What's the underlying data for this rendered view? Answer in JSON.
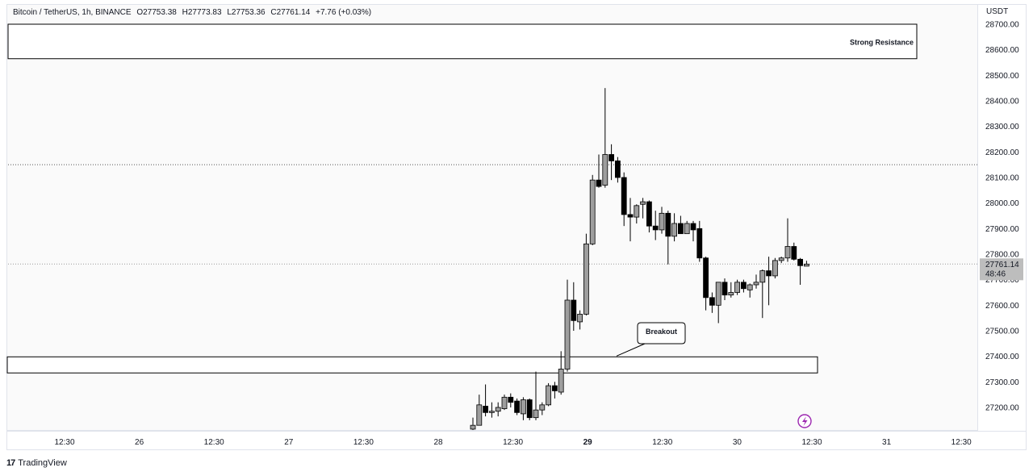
{
  "header": {
    "symbol": "Bitcoin / TetherUS, 1h, BINANCE",
    "open": "O27753.38",
    "high": "H27773.83",
    "low": "L27753.36",
    "close": "C27761.14",
    "change": "+7.76 (+0.03%)"
  },
  "price_axis": {
    "currency": "USDT",
    "current_price_label": "27761.14",
    "countdown_label": "48:46"
  },
  "branding": {
    "logo": "17",
    "name": "TradingView"
  },
  "colors": {
    "background": "#fafafa",
    "candle_up": "#9e9e9e",
    "candle_down": "#000000",
    "wick": "#000000",
    "price_tag": "#bdbdbd",
    "lightning": "#9c27b0"
  },
  "icons": {
    "lightning": "lightning-icon",
    "logo": "tradingview-logo-icon"
  },
  "chart_data": {
    "type": "candlestick",
    "y_range": [
      27120,
      28770
    ],
    "y_ticks": [
      27200,
      27300,
      27400,
      27500,
      27600,
      27700,
      27800,
      27900,
      28000,
      28100,
      28200,
      28300,
      28400,
      28500,
      28600,
      28700
    ],
    "y_tick_labels": [
      "27200.00",
      "27300.00",
      "27400.00",
      "27500.00",
      "27600.00",
      "27700.00",
      "27800.00",
      "27900.00",
      "28000.00",
      "28100.00",
      "28200.00",
      "28300.00",
      "28400.00",
      "28500.00",
      "28600.00",
      "28700.00"
    ],
    "x_labels": [
      "12:30",
      "26",
      "12:30",
      "27",
      "12:30",
      "28",
      "12:30",
      "29",
      "12:30",
      "30",
      "12:30",
      "31",
      "12:30"
    ],
    "x_label_bold_index": 7,
    "grid": false,
    "candles": [
      {
        "o": 27115,
        "h": 27160,
        "l": 27080,
        "c": 27130
      },
      {
        "o": 27130,
        "h": 27250,
        "l": 27130,
        "c": 27210
      },
      {
        "o": 27205,
        "h": 27290,
        "l": 27165,
        "c": 27180
      },
      {
        "o": 27180,
        "h": 27220,
        "l": 27160,
        "c": 27185
      },
      {
        "o": 27185,
        "h": 27220,
        "l": 27165,
        "c": 27200
      },
      {
        "o": 27195,
        "h": 27250,
        "l": 27190,
        "c": 27240
      },
      {
        "o": 27240,
        "h": 27255,
        "l": 27200,
        "c": 27220
      },
      {
        "o": 27225,
        "h": 27235,
        "l": 27170,
        "c": 27180
      },
      {
        "o": 27175,
        "h": 27240,
        "l": 27150,
        "c": 27230
      },
      {
        "o": 27230,
        "h": 27235,
        "l": 27150,
        "c": 27160
      },
      {
        "o": 27160,
        "h": 27340,
        "l": 27150,
        "c": 27190
      },
      {
        "o": 27190,
        "h": 27220,
        "l": 27170,
        "c": 27210
      },
      {
        "o": 27210,
        "h": 27295,
        "l": 27205,
        "c": 27285
      },
      {
        "o": 27285,
        "h": 27300,
        "l": 27235,
        "c": 27265
      },
      {
        "o": 27260,
        "h": 27420,
        "l": 27250,
        "c": 27350
      },
      {
        "o": 27350,
        "h": 27700,
        "l": 27340,
        "c": 27620
      },
      {
        "o": 27620,
        "h": 27690,
        "l": 27500,
        "c": 27540
      },
      {
        "o": 27535,
        "h": 27580,
        "l": 27505,
        "c": 27565
      },
      {
        "o": 27565,
        "h": 27880,
        "l": 27560,
        "c": 27840
      },
      {
        "o": 27840,
        "h": 28110,
        "l": 27835,
        "c": 28090
      },
      {
        "o": 28090,
        "h": 28190,
        "l": 28060,
        "c": 28065
      },
      {
        "o": 28070,
        "h": 28450,
        "l": 28060,
        "c": 28190
      },
      {
        "o": 28190,
        "h": 28230,
        "l": 28090,
        "c": 28165
      },
      {
        "o": 28165,
        "h": 28180,
        "l": 28080,
        "c": 28100
      },
      {
        "o": 28100,
        "h": 28120,
        "l": 27910,
        "c": 27955
      },
      {
        "o": 27955,
        "h": 28020,
        "l": 27850,
        "c": 27945
      },
      {
        "o": 27945,
        "h": 27995,
        "l": 27920,
        "c": 27990
      },
      {
        "o": 27995,
        "h": 28020,
        "l": 27940,
        "c": 28005
      },
      {
        "o": 28005,
        "h": 28010,
        "l": 27885,
        "c": 27910
      },
      {
        "o": 27910,
        "h": 27970,
        "l": 27855,
        "c": 27895
      },
      {
        "o": 27895,
        "h": 27985,
        "l": 27880,
        "c": 27960
      },
      {
        "o": 27960,
        "h": 27970,
        "l": 27760,
        "c": 27870
      },
      {
        "o": 27870,
        "h": 27960,
        "l": 27850,
        "c": 27920
      },
      {
        "o": 27920,
        "h": 27950,
        "l": 27890,
        "c": 27880
      },
      {
        "o": 27880,
        "h": 27930,
        "l": 27880,
        "c": 27920
      },
      {
        "o": 27920,
        "h": 27930,
        "l": 27850,
        "c": 27895
      },
      {
        "o": 27900,
        "h": 27930,
        "l": 27770,
        "c": 27785
      },
      {
        "o": 27785,
        "h": 27790,
        "l": 27580,
        "c": 27630
      },
      {
        "o": 27630,
        "h": 27650,
        "l": 27570,
        "c": 27600
      },
      {
        "o": 27600,
        "h": 27685,
        "l": 27530,
        "c": 27690
      },
      {
        "o": 27690,
        "h": 27705,
        "l": 27620,
        "c": 27640
      },
      {
        "o": 27640,
        "h": 27690,
        "l": 27630,
        "c": 27650
      },
      {
        "o": 27650,
        "h": 27700,
        "l": 27640,
        "c": 27690
      },
      {
        "o": 27690,
        "h": 27700,
        "l": 27650,
        "c": 27665
      },
      {
        "o": 27660,
        "h": 27685,
        "l": 27630,
        "c": 27680
      },
      {
        "o": 27680,
        "h": 27720,
        "l": 27665,
        "c": 27690
      },
      {
        "o": 27690,
        "h": 27740,
        "l": 27550,
        "c": 27735
      },
      {
        "o": 27735,
        "h": 27790,
        "l": 27600,
        "c": 27715
      },
      {
        "o": 27715,
        "h": 27785,
        "l": 27705,
        "c": 27775
      },
      {
        "o": 27775,
        "h": 27790,
        "l": 27765,
        "c": 27785
      },
      {
        "o": 27785,
        "h": 27940,
        "l": 27770,
        "c": 27830
      },
      {
        "o": 27830,
        "h": 27845,
        "l": 27775,
        "c": 27780
      },
      {
        "o": 27780,
        "h": 27785,
        "l": 27680,
        "c": 27755
      },
      {
        "o": 27753,
        "h": 27774,
        "l": 27753,
        "c": 27761
      }
    ],
    "levels": [
      {
        "type": "zone",
        "top": 28700,
        "bottom": 28565,
        "label": "Strong Resistance"
      },
      {
        "type": "dotted",
        "value": 28150
      },
      {
        "type": "dotted",
        "value": 27761.14
      },
      {
        "type": "zone",
        "top": 27398,
        "bottom": 27335,
        "label": ""
      }
    ],
    "annotations": [
      {
        "type": "callout",
        "text": "Breakout",
        "price": 27398
      }
    ]
  }
}
